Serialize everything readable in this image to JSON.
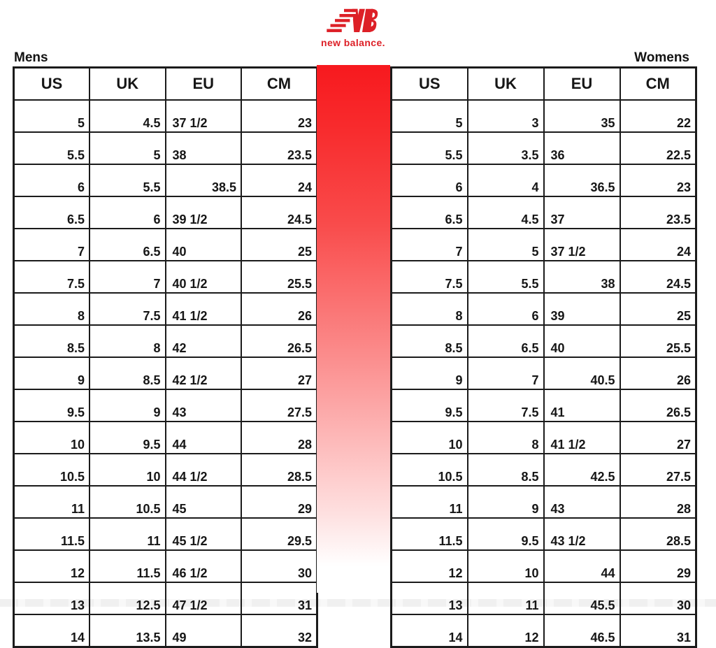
{
  "brand": {
    "wordmark": "new balance.",
    "logo_color": "#dd2027"
  },
  "labels": {
    "mens": "Mens",
    "womens": "Womens"
  },
  "stripe": {
    "top_color": "#f7191e",
    "bottom_color": "#ffffff"
  },
  "tables": {
    "mens": {
      "label": "Mens",
      "headers": [
        "US",
        "UK",
        "EU",
        "CM"
      ],
      "rows": [
        {
          "us": "5",
          "uk": "4.5",
          "eu": "37 1/2",
          "cm": "23",
          "eu_align": "left"
        },
        {
          "us": "5.5",
          "uk": "5",
          "eu": "38",
          "cm": "23.5",
          "eu_align": "left"
        },
        {
          "us": "6",
          "uk": "5.5",
          "eu": "38.5",
          "cm": "24",
          "eu_align": "right"
        },
        {
          "us": "6.5",
          "uk": "6",
          "eu": "39 1/2",
          "cm": "24.5",
          "eu_align": "left"
        },
        {
          "us": "7",
          "uk": "6.5",
          "eu": "40",
          "cm": "25",
          "eu_align": "left"
        },
        {
          "us": "7.5",
          "uk": "7",
          "eu": "40 1/2",
          "cm": "25.5",
          "eu_align": "left"
        },
        {
          "us": "8",
          "uk": "7.5",
          "eu": "41 1/2",
          "cm": "26",
          "eu_align": "left"
        },
        {
          "us": "8.5",
          "uk": "8",
          "eu": "42",
          "cm": "26.5",
          "eu_align": "left"
        },
        {
          "us": "9",
          "uk": "8.5",
          "eu": "42 1/2",
          "cm": "27",
          "eu_align": "left"
        },
        {
          "us": "9.5",
          "uk": "9",
          "eu": "43",
          "cm": "27.5",
          "eu_align": "left"
        },
        {
          "us": "10",
          "uk": "9.5",
          "eu": "44",
          "cm": "28",
          "eu_align": "left"
        },
        {
          "us": "10.5",
          "uk": "10",
          "eu": "44 1/2",
          "cm": "28.5",
          "eu_align": "left"
        },
        {
          "us": "11",
          "uk": "10.5",
          "eu": "45",
          "cm": "29",
          "eu_align": "left"
        },
        {
          "us": "11.5",
          "uk": "11",
          "eu": "45 1/2",
          "cm": "29.5",
          "eu_align": "left"
        },
        {
          "us": "12",
          "uk": "11.5",
          "eu": "46 1/2",
          "cm": "30",
          "eu_align": "left"
        },
        {
          "us": "13",
          "uk": "12.5",
          "eu": "47 1/2",
          "cm": "31",
          "eu_align": "left"
        },
        {
          "us": "14",
          "uk": "13.5",
          "eu": "49",
          "cm": "32",
          "eu_align": "left"
        }
      ]
    },
    "womens": {
      "label": "Womens",
      "headers": [
        "US",
        "UK",
        "EU",
        "CM"
      ],
      "rows": [
        {
          "us": "5",
          "uk": "3",
          "eu": "35",
          "cm": "22",
          "eu_align": "right"
        },
        {
          "us": "5.5",
          "uk": "3.5",
          "eu": "36",
          "cm": "22.5",
          "eu_align": "left"
        },
        {
          "us": "6",
          "uk": "4",
          "eu": "36.5",
          "cm": "23",
          "eu_align": "right"
        },
        {
          "us": "6.5",
          "uk": "4.5",
          "eu": "37",
          "cm": "23.5",
          "eu_align": "left"
        },
        {
          "us": "7",
          "uk": "5",
          "eu": "37 1/2",
          "cm": "24",
          "eu_align": "left"
        },
        {
          "us": "7.5",
          "uk": "5.5",
          "eu": "38",
          "cm": "24.5",
          "eu_align": "right"
        },
        {
          "us": "8",
          "uk": "6",
          "eu": "39",
          "cm": "25",
          "eu_align": "left"
        },
        {
          "us": "8.5",
          "uk": "6.5",
          "eu": "40",
          "cm": "25.5",
          "eu_align": "left"
        },
        {
          "us": "9",
          "uk": "7",
          "eu": "40.5",
          "cm": "26",
          "eu_align": "right"
        },
        {
          "us": "9.5",
          "uk": "7.5",
          "eu": "41",
          "cm": "26.5",
          "eu_align": "left"
        },
        {
          "us": "10",
          "uk": "8",
          "eu": "41 1/2",
          "cm": "27",
          "eu_align": "left"
        },
        {
          "us": "10.5",
          "uk": "8.5",
          "eu": "42.5",
          "cm": "27.5",
          "eu_align": "right"
        },
        {
          "us": "11",
          "uk": "9",
          "eu": "43",
          "cm": "28",
          "eu_align": "left"
        },
        {
          "us": "11.5",
          "uk": "9.5",
          "eu": "43 1/2",
          "cm": "28.5",
          "eu_align": "left"
        },
        {
          "us": "12",
          "uk": "10",
          "eu": "44",
          "cm": "29",
          "eu_align": "right"
        },
        {
          "us": "13",
          "uk": "11",
          "eu": "45.5",
          "cm": "30",
          "eu_align": "right"
        },
        {
          "us": "14",
          "uk": "12",
          "eu": "46.5",
          "cm": "31",
          "eu_align": "right"
        }
      ]
    }
  }
}
